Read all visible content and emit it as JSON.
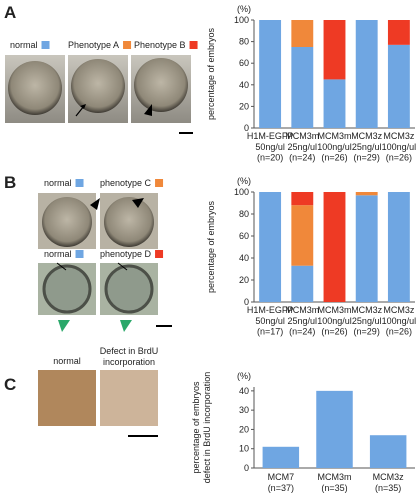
{
  "chart_data": [
    {
      "type": "bar",
      "stacked": true,
      "ylabel": "percentage of embryos",
      "yunit": "(%)",
      "categories": [
        "H1M-EGFP\n50ng/ul\n(n=20)",
        "MCM3m\n25ng/ul\n(n=24)",
        "MCM3m\n100ng/ul\n(n=26)",
        "MCM3z\n25ng/ul\n(n=29)",
        "MCM3z\n100ng/ul\n(n=26)"
      ],
      "series": [
        {
          "name": "normal",
          "color": "#6fa6e2",
          "values": [
            100,
            75,
            45,
            100,
            77
          ]
        },
        {
          "name": "Phenotype A",
          "color": "#f0883a",
          "values": [
            0,
            25,
            0,
            0,
            0
          ]
        },
        {
          "name": "Phenotype B",
          "color": "#ee3a24",
          "values": [
            0,
            0,
            55,
            0,
            23
          ]
        }
      ],
      "ylim": [
        0,
        100
      ],
      "yticks": [
        0,
        20,
        40,
        60,
        80,
        100
      ]
    },
    {
      "type": "bar",
      "stacked": true,
      "ylabel": "percentage of embryos",
      "yunit": "(%)",
      "categories": [
        "H1M-EGFP\n50ng/ul\n(n=17)",
        "MCM3m\n25ng/ul\n(n=24)",
        "MCM3m\n100ng/ul\n(n=26)",
        "MCM3z\n25ng/ul\n(n=29)",
        "MCM3z\n100ng/ul\n(n=26)"
      ],
      "series": [
        {
          "name": "normal",
          "color": "#6fa6e2",
          "values": [
            100,
            33,
            0,
            97,
            100
          ]
        },
        {
          "name": "phenotype C",
          "color": "#f0883a",
          "values": [
            0,
            55,
            0,
            3,
            0
          ]
        },
        {
          "name": "phenotype D",
          "color": "#ee3a24",
          "values": [
            0,
            12,
            100,
            0,
            0
          ]
        }
      ],
      "ylim": [
        0,
        100
      ],
      "yticks": [
        0,
        20,
        40,
        60,
        80,
        100
      ]
    },
    {
      "type": "bar",
      "ylabel": "percentage of embryos\ndefect in BrdU incorporation",
      "yunit": "(%)",
      "categories": [
        "MCM7\n(n=37)",
        "MCM3m\n(n=35)",
        "MCM3z\n(n=35)"
      ],
      "values": [
        11,
        40,
        17
      ],
      "color": "#6fa6e2",
      "ylim": [
        0,
        42
      ],
      "yticks": [
        0,
        10,
        20,
        30,
        40
      ]
    }
  ],
  "panels": [
    {
      "label": "A"
    },
    {
      "label": "B"
    },
    {
      "label": "C",
      "images": [
        "normal",
        "Defect in BrdU\nincorporation"
      ]
    }
  ]
}
